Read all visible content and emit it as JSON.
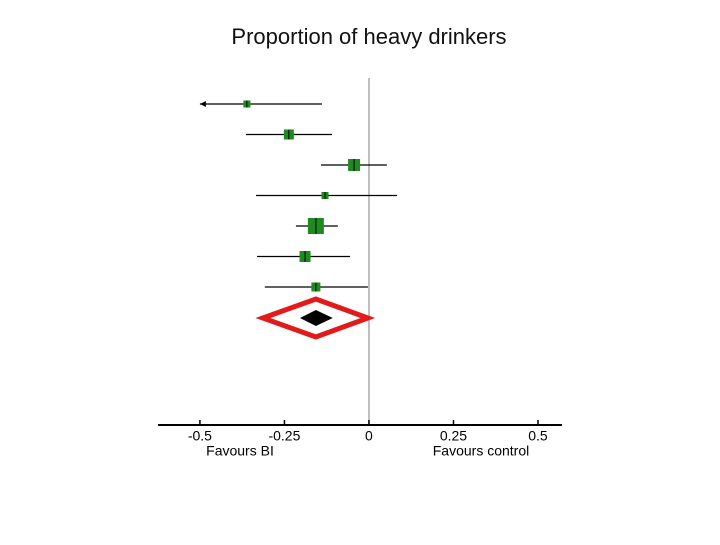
{
  "chart_data": {
    "type": "forest",
    "title": "Proportion of heavy drinkers",
    "estimates": [
      -0.361,
      -0.237,
      -0.044,
      -0.13,
      -0.157,
      -0.189,
      -0.157
    ],
    "lower": [
      -0.5,
      -0.364,
      -0.142,
      -0.334,
      -0.216,
      -0.331,
      -0.308
    ],
    "upper": [
      -0.139,
      -0.109,
      0.053,
      0.083,
      -0.092,
      -0.056,
      -0.003
    ],
    "weights": [
      7,
      10,
      12,
      7,
      16,
      11,
      9
    ],
    "clipped_left": [
      true,
      false,
      false,
      false,
      false,
      false,
      false
    ],
    "pooled": {
      "estimate": -0.157,
      "lower": -0.204,
      "upper": -0.107
    },
    "color": "#1f8a1f",
    "pooled_color": "#000000",
    "highlight_color": "#e21a1a",
    "xlim": [
      -0.624,
      0.571
    ],
    "xticks": [
      -0.5,
      -0.25,
      0,
      0.25,
      0.5
    ],
    "left_label": "Favours BI",
    "right_label": "Favours control"
  }
}
